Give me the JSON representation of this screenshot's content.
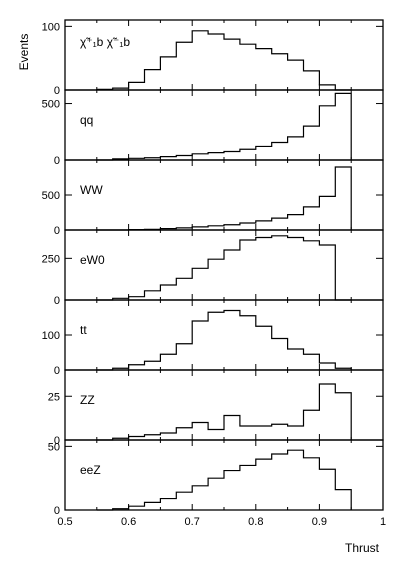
{
  "figure": {
    "ylabel": "Events",
    "xlabel": "Thrust"
  },
  "chart_data": {
    "type": "histogram-stack",
    "xlim": [
      0.5,
      1.0
    ],
    "x_ticks": [
      "0.5",
      "0.6",
      "0.7",
      "0.8",
      "0.9",
      "1"
    ],
    "bin_edges": [
      0.55,
      0.575,
      0.6,
      0.625,
      0.65,
      0.675,
      0.7,
      0.725,
      0.75,
      0.775,
      0.8,
      0.825,
      0.85,
      0.875,
      0.9,
      0.925,
      0.95
    ],
    "panels": [
      {
        "label": "χ̃⁺₁b χ̃⁻₁b",
        "ylim": [
          0,
          110
        ],
        "y_ticks": [
          {
            "v": 0,
            "t": "0"
          },
          {
            "v": 100,
            "t": "100"
          }
        ],
        "values": [
          1,
          3,
          12,
          32,
          52,
          75,
          93,
          88,
          80,
          72,
          65,
          57,
          47,
          30,
          8,
          0
        ]
      },
      {
        "label": "qq",
        "ylim": [
          0,
          620
        ],
        "y_ticks": [
          {
            "v": 0,
            "t": "0"
          },
          {
            "v": 500,
            "t": "500"
          }
        ],
        "values": [
          0,
          10,
          15,
          20,
          30,
          40,
          55,
          65,
          75,
          95,
          120,
          155,
          205,
          300,
          480,
          590
        ]
      },
      {
        "label": "WW",
        "ylim": [
          0,
          1000
        ],
        "y_ticks": [
          {
            "v": 0,
            "t": "0"
          },
          {
            "v": 500,
            "t": "500"
          }
        ],
        "values": [
          0,
          0,
          5,
          10,
          20,
          30,
          45,
          60,
          75,
          100,
          130,
          170,
          220,
          330,
          480,
          900
        ]
      },
      {
        "label": "eW0",
        "ylim": [
          0,
          420
        ],
        "y_ticks": [
          {
            "v": 0,
            "t": "0"
          },
          {
            "v": 250,
            "t": "250"
          }
        ],
        "values": [
          0,
          10,
          20,
          55,
          90,
          130,
          190,
          245,
          300,
          360,
          375,
          385,
          375,
          355,
          330,
          0
        ]
      },
      {
        "label": "tt",
        "ylim": [
          0,
          200
        ],
        "y_ticks": [
          {
            "v": 0,
            "t": "0"
          },
          {
            "v": 100,
            "t": "100"
          }
        ],
        "values": [
          0,
          5,
          15,
          25,
          45,
          75,
          140,
          165,
          170,
          155,
          125,
          90,
          60,
          45,
          20,
          5
        ]
      },
      {
        "label": "ZZ",
        "ylim": [
          0,
          40
        ],
        "y_ticks": [
          {
            "v": 0,
            "t": "0"
          },
          {
            "v": 25,
            "t": "25"
          }
        ],
        "values": [
          0,
          1,
          2,
          3,
          4,
          7,
          10,
          6,
          14,
          8,
          8,
          9,
          8,
          17,
          32,
          27
        ]
      },
      {
        "label": "eeZ",
        "ylim": [
          0,
          55
        ],
        "y_ticks": [
          {
            "v": 0,
            "t": "0"
          },
          {
            "v": 50,
            "t": "50"
          }
        ],
        "values": [
          0,
          1,
          3,
          6,
          9,
          14,
          19,
          25,
          31,
          35,
          40,
          44,
          47,
          41,
          32,
          16
        ]
      }
    ]
  }
}
